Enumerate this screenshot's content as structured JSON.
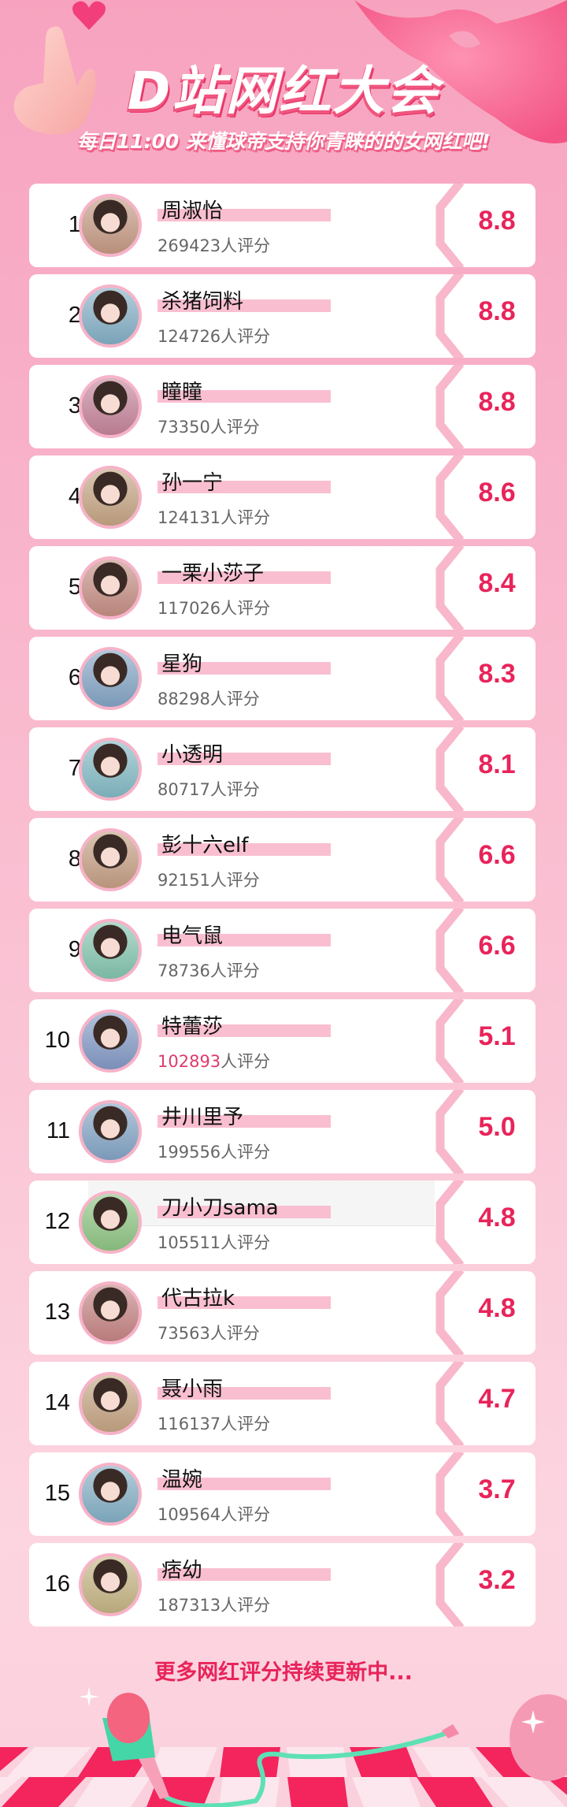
{
  "header": {
    "title": "D站网红大会",
    "subtitle": "每日11:00 来懂球帝支持你青睐的的女网红吧!"
  },
  "colors": {
    "accent": "#e8245a",
    "bar": "#f9bfd0",
    "background": "#f7a3bf"
  },
  "rows": [
    {
      "rank": "1",
      "name": "周淑怡",
      "count": "269423",
      "suffix": "人评分",
      "score": "8.8"
    },
    {
      "rank": "2",
      "name": "杀猪饲料",
      "count": "124726",
      "suffix": "人评分",
      "score": "8.8"
    },
    {
      "rank": "3",
      "name": "瞳瞳",
      "count": "73350",
      "suffix": "人评分",
      "score": "8.8"
    },
    {
      "rank": "4",
      "name": "孙一宁",
      "count": "124131",
      "suffix": "人评分",
      "score": "8.6"
    },
    {
      "rank": "5",
      "name": "一栗小莎子",
      "count": "117026",
      "suffix": "人评分",
      "score": "8.4"
    },
    {
      "rank": "6",
      "name": "星狗",
      "count": "88298",
      "suffix": "人评分",
      "score": "8.3"
    },
    {
      "rank": "7",
      "name": "小透明",
      "count": "80717",
      "suffix": "人评分",
      "score": "8.1"
    },
    {
      "rank": "8",
      "name": "彭十六elf",
      "count": "92151",
      "suffix": "人评分",
      "score": "6.6"
    },
    {
      "rank": "9",
      "name": "电气鼠",
      "count": "78736",
      "suffix": "人评分",
      "score": "6.6"
    },
    {
      "rank": "10",
      "name": "特蕾莎",
      "count": "102893",
      "suffix": "人评分",
      "score": "5.1",
      "highlight": true
    },
    {
      "rank": "11",
      "name": "井川里予",
      "count": "199556",
      "suffix": "人评分",
      "score": "5.0"
    },
    {
      "rank": "12",
      "name": "刀小刀sama",
      "count": "105511",
      "suffix": "人评分",
      "score": "4.8",
      "overlay": true
    },
    {
      "rank": "13",
      "name": "代古拉k",
      "count": "73563",
      "suffix": "人评分",
      "score": "4.8"
    },
    {
      "rank": "14",
      "name": "聂小雨",
      "count": "116137",
      "suffix": "人评分",
      "score": "4.7"
    },
    {
      "rank": "15",
      "name": "温婉",
      "count": "109564",
      "suffix": "人评分",
      "score": "3.7"
    },
    {
      "rank": "16",
      "name": "痞幼",
      "count": "187313",
      "suffix": "人评分",
      "score": "3.2"
    }
  ],
  "footer": {
    "text": "更多网红评分持续更新中..."
  },
  "icons": {
    "heart": "heart-icon",
    "hand": "finger-heart-icon",
    "lips": "lips-icon",
    "microphone": "microphone-icon",
    "sparkle": "sparkle-icon"
  }
}
